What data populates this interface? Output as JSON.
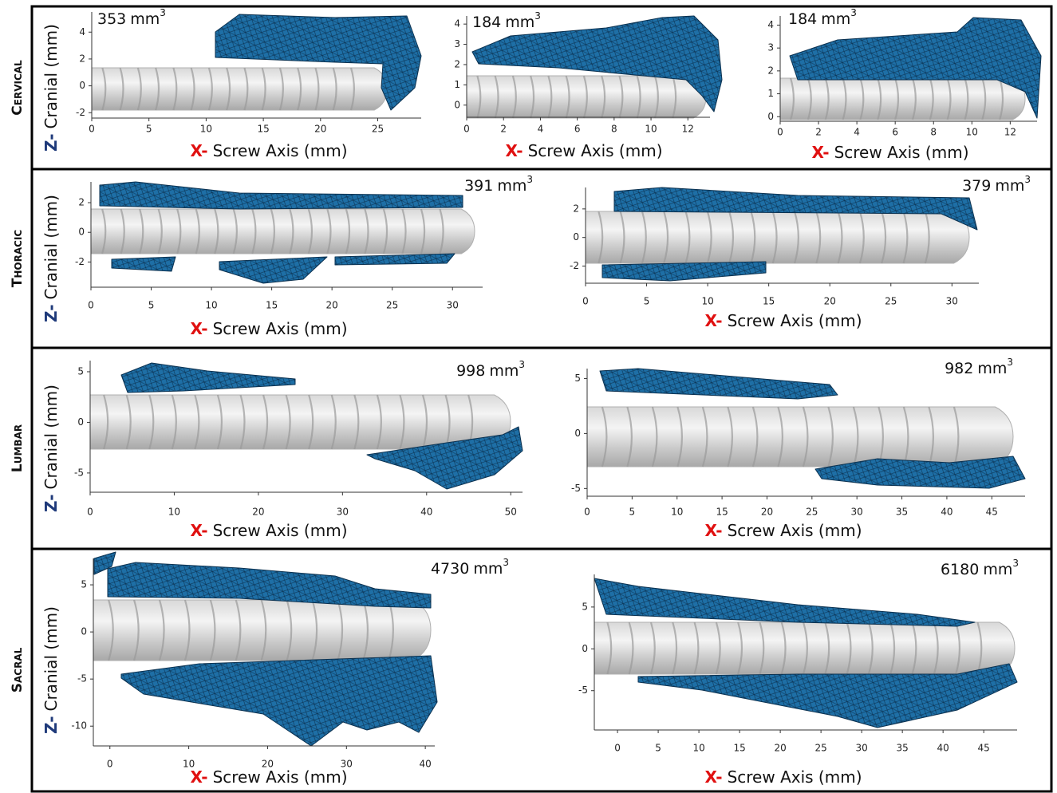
{
  "x_axis_prefix": "X-",
  "x_axis_label": "Screw Axis (mm)",
  "y_axis_prefix": "Z-",
  "y_axis_label": "Cranial (mm)",
  "volume_unit": "mm",
  "volume_exponent": 3,
  "rows": [
    {
      "label": "Cervical",
      "panels": [
        {
          "volume": 353,
          "xlim": [
            0,
            28.8
          ],
          "ylim": [
            -2.4,
            5.5
          ],
          "xticks": [
            0,
            5,
            10,
            15,
            20,
            25
          ],
          "yticks": [
            -2,
            0,
            2,
            4
          ]
        },
        {
          "volume": 184,
          "xlim": [
            0,
            13.2
          ],
          "ylim": [
            -0.6,
            4.4
          ],
          "xticks": [
            0,
            2,
            4,
            6,
            8,
            10,
            12
          ],
          "yticks": [
            0,
            1,
            2,
            3,
            4
          ]
        },
        {
          "volume": 184,
          "xlim": [
            0,
            13.4
          ],
          "ylim": [
            -0.2,
            4.4
          ],
          "xticks": [
            0,
            2,
            4,
            6,
            8,
            10,
            12
          ],
          "yticks": [
            0,
            1,
            2,
            3,
            4
          ]
        }
      ]
    },
    {
      "label": "Thoracic",
      "panels": [
        {
          "volume": 391,
          "xlim": [
            0,
            32.5
          ],
          "ylim": [
            -3.7,
            3.4
          ],
          "xticks": [
            0,
            5,
            10,
            15,
            20,
            25,
            30
          ],
          "yticks": [
            -2,
            0,
            2
          ]
        },
        {
          "volume": 379,
          "xlim": [
            0,
            32.2
          ],
          "ylim": [
            -3.2,
            3.5
          ],
          "xticks": [
            0,
            5,
            10,
            15,
            20,
            25,
            30
          ],
          "yticks": [
            -2,
            0,
            2
          ]
        }
      ]
    },
    {
      "label": "Lumbar",
      "panels": [
        {
          "volume": 998,
          "xlim": [
            0,
            51.4
          ],
          "ylim": [
            -6.9,
            6.1
          ],
          "xticks": [
            0,
            10,
            20,
            30,
            40,
            50
          ],
          "yticks": [
            -5,
            0,
            5
          ]
        },
        {
          "volume": 982,
          "xlim": [
            0,
            48.7
          ],
          "ylim": [
            -5.7,
            5.9
          ],
          "xticks": [
            0,
            5,
            10,
            15,
            20,
            25,
            30,
            35,
            40,
            45
          ],
          "yticks": [
            -5,
            0,
            5
          ]
        }
      ]
    },
    {
      "label": "Sacral",
      "panels": [
        {
          "volume": 4730,
          "xlim": [
            -2.1,
            41.2
          ],
          "ylim": [
            -12.1,
            7.8
          ],
          "xticks": [
            0,
            10,
            20,
            30,
            40
          ],
          "yticks": [
            -10,
            -5,
            0,
            5
          ]
        },
        {
          "volume": 6180,
          "xlim": [
            -2.85,
            49.1
          ],
          "ylim": [
            -9.7,
            8.9
          ],
          "xticks": [
            0,
            5,
            10,
            15,
            20,
            25,
            30,
            35,
            40,
            45
          ],
          "yticks": [
            -5,
            0,
            5
          ]
        }
      ]
    }
  ]
}
